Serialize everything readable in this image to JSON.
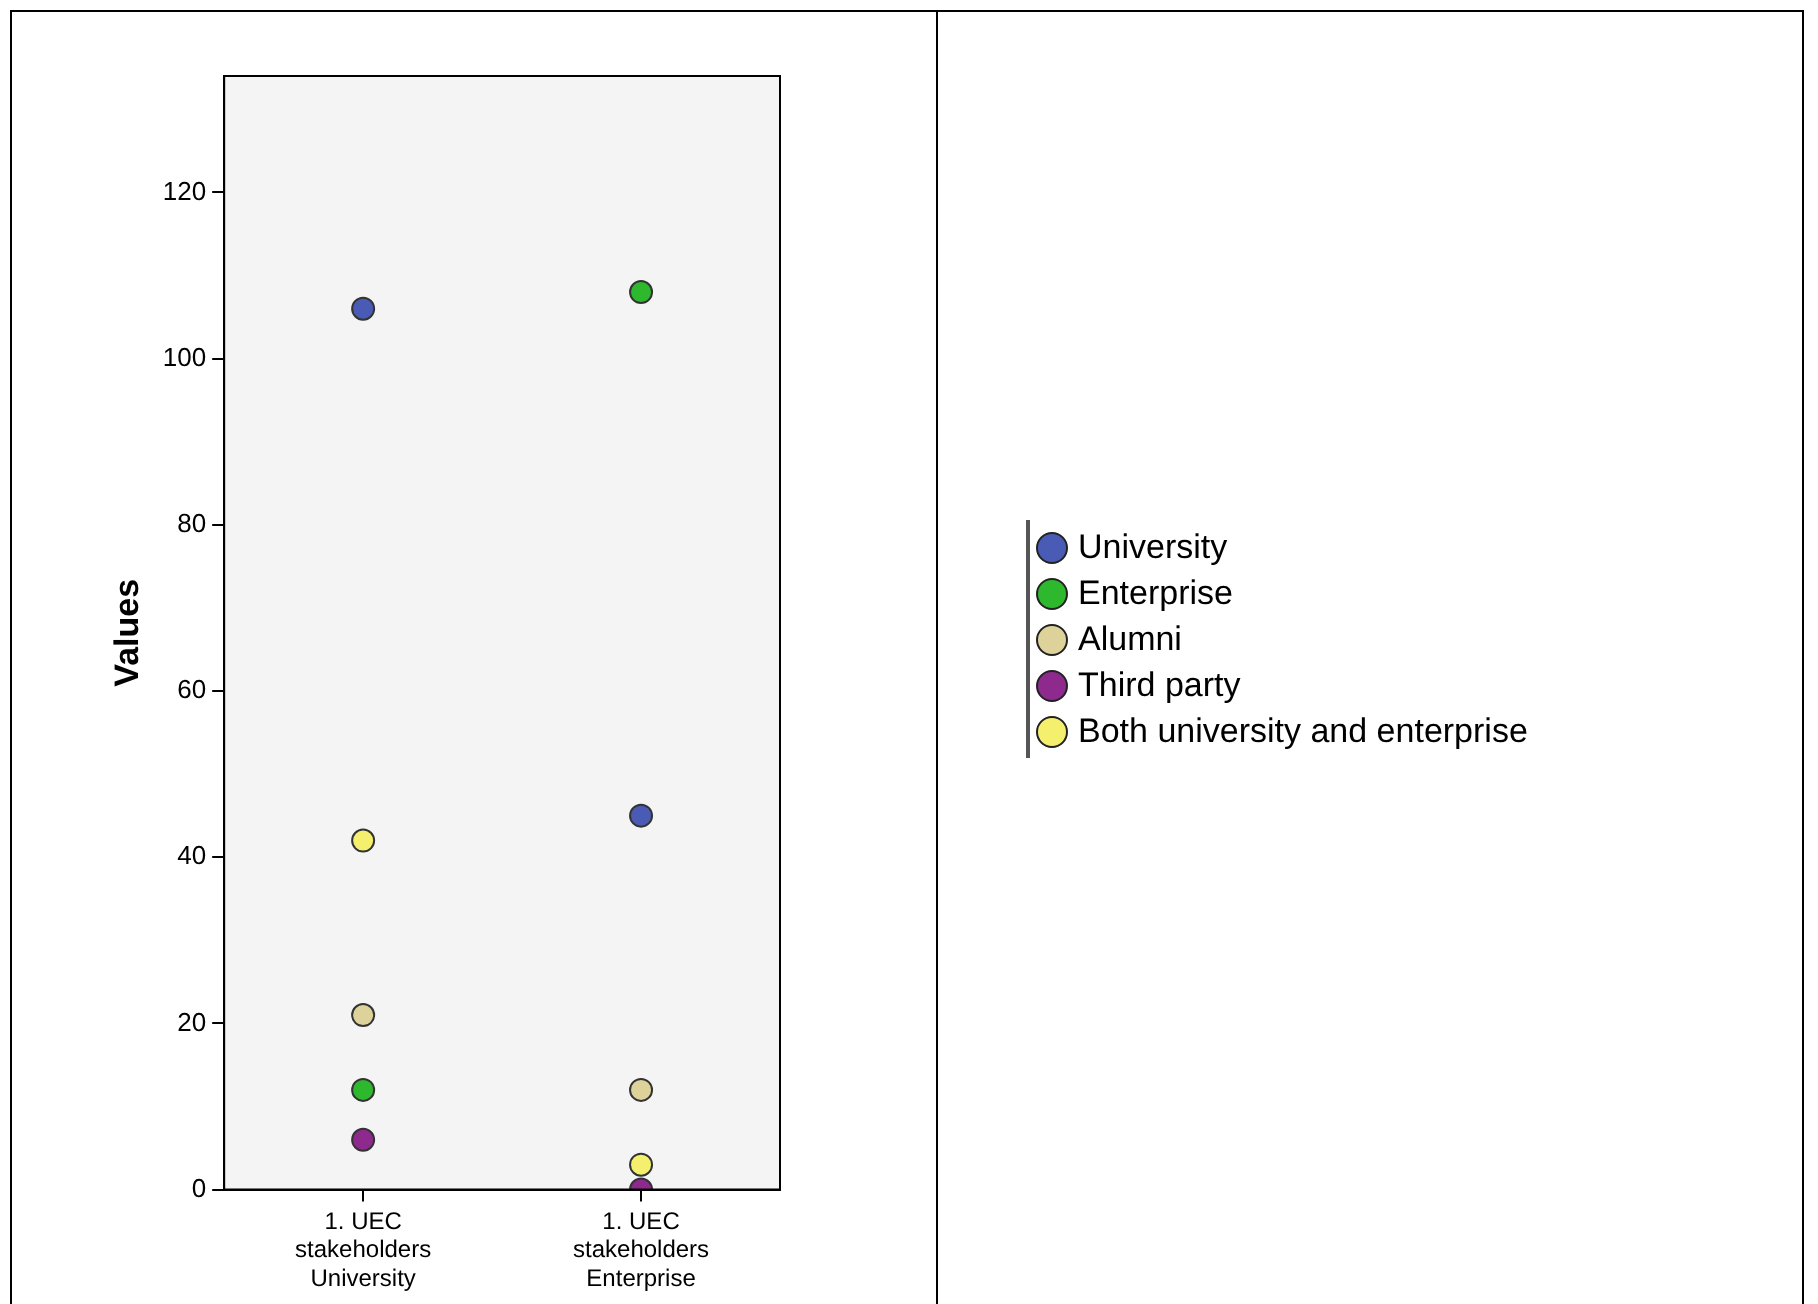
{
  "chart_data": {
    "type": "scatter",
    "ylabel": "Values",
    "categories": [
      "1. UEC\nstakeholders\nUniversity",
      "1. UEC\nstakeholders\nEnterprise"
    ],
    "series": [
      {
        "name": "University",
        "color": "#4a5bb5",
        "values": [
          106,
          45
        ]
      },
      {
        "name": "Enterprise",
        "color": "#2eb82e",
        "values": [
          12,
          108
        ]
      },
      {
        "name": "Alumni",
        "color": "#ddd29a",
        "values": [
          21,
          12
        ]
      },
      {
        "name": "Third party",
        "color": "#8e2a8e",
        "values": [
          6,
          0
        ]
      },
      {
        "name": "Both university and enterprise",
        "color": "#f5ef6e",
        "values": [
          42,
          3
        ]
      }
    ],
    "ylim": [
      0,
      134
    ],
    "yticks": [
      0,
      20,
      40,
      60,
      80,
      100,
      120
    ],
    "grid": false,
    "legend": "right",
    "marker": "circle"
  }
}
